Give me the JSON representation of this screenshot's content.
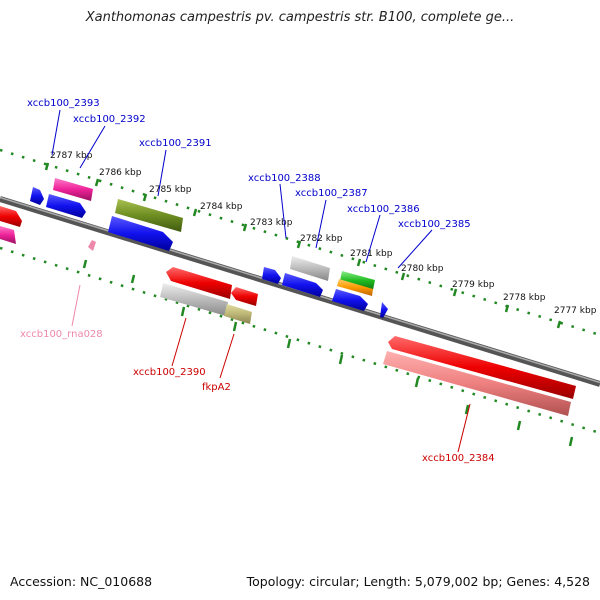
{
  "title": "Xanthomonas campestris pv. campestris str. B100, complete ge...",
  "accession": "Accession: NC_010688",
  "topology": "Topology: circular; Length: 5,079,002 bp; Genes: 4,528",
  "scale_labels": [
    "2787 kbp",
    "2786 kbp",
    "2785 kbp",
    "2784 kbp",
    "2783 kbp",
    "2782 kbp",
    "2781 kbp",
    "2780 kbp",
    "2779 kbp",
    "2778 kbp",
    "2777 kbp"
  ],
  "gene_labels": {
    "g2393": "xccb100_2393",
    "g2392": "xccb100_2392",
    "g2391": "xccb100_2391",
    "g2388": "xccb100_2388",
    "g2387": "xccb100_2387",
    "g2386": "xccb100_2386",
    "g2385": "xccb100_2385",
    "rna028": "xccb100_rna028",
    "g2390": "xccb100_2390",
    "fkpA2": "fkpA2",
    "g2384": "xccb100_2384"
  },
  "colors": {
    "label_blue": "#0000cc",
    "label_red": "#cc0000",
    "label_pink": "#ee88aa",
    "scale_green": "#228822",
    "backbone": "#777777"
  }
}
